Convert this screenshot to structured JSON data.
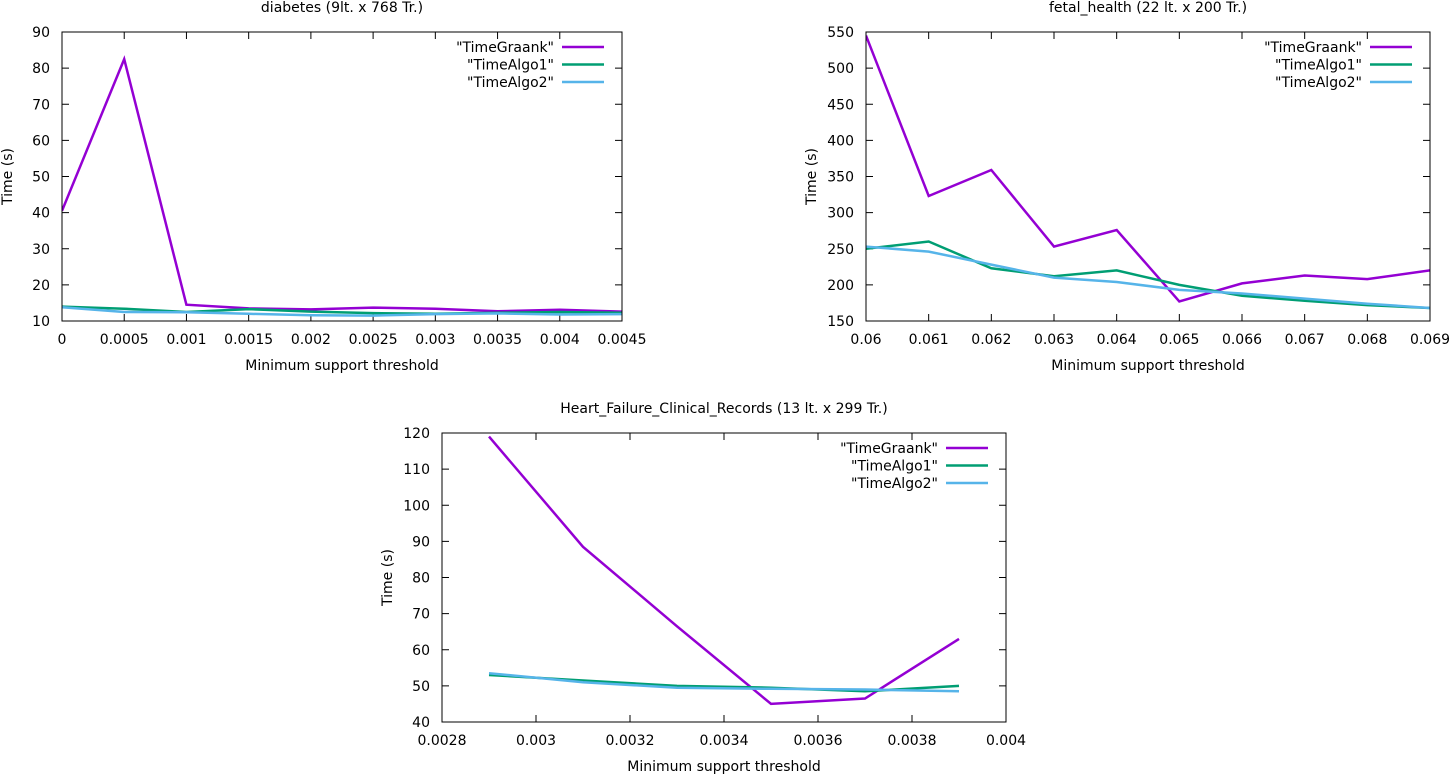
{
  "chart_data": [
    {
      "type": "line",
      "title": "diabetes (9lt. x  768 Tr.)",
      "xlabel": "Minimum support threshold",
      "ylabel": "Time (s)",
      "xlim": [
        0,
        0.0045
      ],
      "ylim": [
        10,
        90
      ],
      "xticks": [
        0,
        0.0005,
        0.001,
        0.0015,
        0.002,
        0.0025,
        0.003,
        0.0035,
        0.004,
        0.0045
      ],
      "xtick_labels": [
        "0",
        "0.0005",
        "0.001",
        "0.0015",
        "0.002",
        "0.0025",
        "0.003",
        "0.0035",
        "0.004",
        "0.0045"
      ],
      "yticks": [
        10,
        20,
        30,
        40,
        50,
        60,
        70,
        80,
        90
      ],
      "ytick_labels": [
        "10",
        "20",
        "30",
        "40",
        "50",
        "60",
        "70",
        "80",
        "90"
      ],
      "legend_position": "top-right",
      "grid": false,
      "series": [
        {
          "name": "\"TimeGraank\"",
          "color": "#9400d3",
          "x": [
            0,
            0.0005,
            0.001,
            0.0015,
            0.002,
            0.0025,
            0.003,
            0.0035,
            0.004,
            0.0045
          ],
          "y": [
            40.5,
            82.5,
            14.5,
            13.5,
            13.2,
            13.7,
            13.4,
            12.7,
            13.1,
            12.6
          ]
        },
        {
          "name": "\"TimeAlgo1\"",
          "color": "#009e73",
          "x": [
            0,
            0.0005,
            0.001,
            0.0015,
            0.002,
            0.0025,
            0.003,
            0.0035,
            0.004,
            0.0045
          ],
          "y": [
            14.0,
            13.4,
            12.5,
            13.3,
            12.6,
            12.2,
            12.0,
            12.3,
            12.5,
            12.3
          ]
        },
        {
          "name": "\"TimeAlgo2\"",
          "color": "#56b4e9",
          "x": [
            0,
            0.0005,
            0.001,
            0.0015,
            0.002,
            0.0025,
            0.003,
            0.0035,
            0.004,
            0.0045
          ],
          "y": [
            13.8,
            12.5,
            12.4,
            12.0,
            11.6,
            11.5,
            11.9,
            12.1,
            11.8,
            11.9
          ]
        }
      ]
    },
    {
      "type": "line",
      "title": "fetal_health (22 lt. x  200 Tr.)",
      "xlabel": "Minimum support threshold",
      "ylabel": "Time (s)",
      "xlim": [
        0.06,
        0.069
      ],
      "ylim": [
        150,
        550
      ],
      "xticks": [
        0.06,
        0.061,
        0.062,
        0.063,
        0.064,
        0.065,
        0.066,
        0.067,
        0.068,
        0.069
      ],
      "xtick_labels": [
        "0.06",
        "0.061",
        "0.062",
        "0.063",
        "0.064",
        "0.065",
        "0.066",
        "0.067",
        "0.068",
        "0.069"
      ],
      "yticks": [
        150,
        200,
        250,
        300,
        350,
        400,
        450,
        500,
        550
      ],
      "ytick_labels": [
        "150",
        "200",
        "250",
        "300",
        "350",
        "400",
        "450",
        "500",
        "550"
      ],
      "legend_position": "top-right",
      "grid": false,
      "series": [
        {
          "name": "\"TimeGraank\"",
          "color": "#9400d3",
          "x": [
            0.06,
            0.061,
            0.062,
            0.063,
            0.064,
            0.065,
            0.066,
            0.067,
            0.068,
            0.069
          ],
          "y": [
            545,
            323,
            359,
            253,
            276,
            177,
            202,
            213,
            208,
            220
          ]
        },
        {
          "name": "\"TimeAlgo1\"",
          "color": "#009e73",
          "x": [
            0.06,
            0.061,
            0.062,
            0.063,
            0.064,
            0.065,
            0.066,
            0.067,
            0.068,
            0.069
          ],
          "y": [
            250,
            260,
            223,
            212,
            220,
            200,
            185,
            178,
            172,
            168
          ]
        },
        {
          "name": "\"TimeAlgo2\"",
          "color": "#56b4e9",
          "x": [
            0.06,
            0.061,
            0.062,
            0.063,
            0.064,
            0.065,
            0.066,
            0.067,
            0.068,
            0.069
          ],
          "y": [
            253,
            246,
            228,
            210,
            204,
            193,
            188,
            181,
            174,
            168
          ]
        }
      ]
    },
    {
      "type": "line",
      "title": "Heart_Failure_Clinical_Records (13 lt. x  299 Tr.)",
      "xlabel": "Minimum support threshold",
      "ylabel": "Time (s)",
      "xlim": [
        0.0028,
        0.004
      ],
      "ylim": [
        40,
        120
      ],
      "xticks": [
        0.0028,
        0.003,
        0.0032,
        0.0034,
        0.0036,
        0.0038,
        0.004
      ],
      "xtick_labels": [
        "0.0028",
        "0.003",
        "0.0032",
        "0.0034",
        "0.0036",
        "0.0038",
        "0.004"
      ],
      "yticks": [
        40,
        50,
        60,
        70,
        80,
        90,
        100,
        110,
        120
      ],
      "ytick_labels": [
        "40",
        "50",
        "60",
        "70",
        "80",
        "90",
        "100",
        "110",
        "120"
      ],
      "legend_position": "top-right",
      "grid": false,
      "series": [
        {
          "name": "\"TimeGraank\"",
          "color": "#9400d3",
          "x": [
            0.0029,
            0.0031,
            0.0033,
            0.0035,
            0.0037,
            0.0039
          ],
          "y": [
            119,
            88.5,
            66.5,
            45,
            46.5,
            63
          ]
        },
        {
          "name": "\"TimeAlgo1\"",
          "color": "#009e73",
          "x": [
            0.0029,
            0.0031,
            0.0033,
            0.0035,
            0.0037,
            0.0039
          ],
          "y": [
            53,
            51.5,
            50,
            49.5,
            48.5,
            50
          ]
        },
        {
          "name": "\"TimeAlgo2\"",
          "color": "#56b4e9",
          "x": [
            0.0029,
            0.0031,
            0.0033,
            0.0035,
            0.0037,
            0.0039
          ],
          "y": [
            53.5,
            51,
            49.5,
            49.2,
            49,
            48.5
          ]
        }
      ]
    }
  ]
}
